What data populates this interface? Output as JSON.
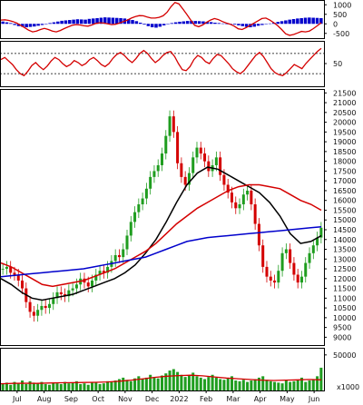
{
  "chart_data": {
    "type": "line",
    "title": "",
    "x_axis": {
      "labels": [
        "Jul",
        "Aug",
        "Sep",
        "Oct",
        "Nov",
        "Dec",
        "2022",
        "Feb",
        "Mar",
        "Apr",
        "May",
        "Jun"
      ]
    },
    "panels": [
      {
        "id": "macd",
        "ylim": [
          -750,
          1250
        ],
        "tick_labels": [
          "1000",
          "500",
          "0",
          "-500"
        ],
        "tick_values": [
          1000,
          500,
          0,
          -500
        ],
        "series": [
          {
            "type": "histogram",
            "color": "#0000cc",
            "values": [
              120,
              80,
              40,
              -60,
              -120,
              -150,
              -180,
              -160,
              -140,
              -100,
              -60,
              -20,
              40,
              80,
              120,
              160,
              180,
              200,
              220,
              240,
              230,
              220,
              260,
              280,
              300,
              320,
              340,
              330,
              320,
              310,
              300,
              280,
              240,
              200,
              140,
              60,
              -40,
              -120,
              -180,
              -200,
              -150,
              -80,
              -20,
              40,
              80,
              110,
              130,
              150,
              160,
              150,
              140,
              130,
              110,
              90,
              60,
              40,
              20,
              0,
              -20,
              -40,
              -80,
              -120,
              -160,
              -180,
              -150,
              -100,
              -60,
              -20,
              20,
              60,
              100,
              140,
              180,
              220,
              250,
              280,
              300,
              320,
              330,
              320,
              310,
              300
            ]
          },
          {
            "type": "line",
            "color": "#d40000",
            "values": [
              200,
              210,
              180,
              120,
              40,
              -80,
              -200,
              -330,
              -420,
              -380,
              -300,
              -240,
              -300,
              -380,
              -420,
              -350,
              -250,
              -160,
              -80,
              -40,
              -60,
              -100,
              -120,
              -60,
              20,
              60,
              40,
              0,
              -40,
              -20,
              40,
              120,
              200,
              300,
              380,
              430,
              420,
              360,
              300,
              300,
              340,
              420,
              600,
              900,
              1120,
              1050,
              780,
              500,
              200,
              -80,
              -150,
              -60,
              80,
              200,
              280,
              220,
              120,
              40,
              -20,
              -120,
              -260,
              -300,
              -200,
              -80,
              40,
              160,
              280,
              300,
              200,
              60,
              -100,
              -300,
              -520,
              -600,
              -560,
              -480,
              -400,
              -420,
              -380,
              -250,
              -100,
              60
            ]
          }
        ]
      },
      {
        "id": "rsi",
        "ylim": [
          5,
          95
        ],
        "tick_labels": [
          "50"
        ],
        "tick_values": [
          50
        ],
        "levels": [
          70,
          30
        ],
        "series": [
          {
            "type": "line",
            "color": "#d40000",
            "values": [
              58,
              62,
              55,
              48,
              38,
              30,
              26,
              35,
              46,
              52,
              44,
              38,
              45,
              55,
              62,
              58,
              50,
              44,
              48,
              56,
              52,
              46,
              50,
              58,
              62,
              56,
              48,
              44,
              50,
              60,
              68,
              72,
              66,
              58,
              52,
              60,
              70,
              76,
              70,
              60,
              52,
              58,
              66,
              72,
              74,
              64,
              50,
              38,
              36,
              44,
              58,
              66,
              62,
              54,
              50,
              60,
              68,
              66,
              58,
              50,
              40,
              34,
              30,
              36,
              46,
              56,
              66,
              72,
              64,
              52,
              40,
              32,
              28,
              26,
              32,
              40,
              48,
              44,
              40,
              50,
              58,
              66,
              74,
              80
            ]
          }
        ]
      },
      {
        "id": "price",
        "ylim": [
          8600,
          21700
        ],
        "tick_labels": [
          "21500",
          "21000",
          "20500",
          "20000",
          "19500",
          "19000",
          "18500",
          "18000",
          "17500",
          "17000",
          "16500",
          "16000",
          "15500",
          "15000",
          "14500",
          "14000",
          "13500",
          "13000",
          "12500",
          "12000",
          "11500",
          "11000",
          "10500",
          "10000",
          "9500",
          "9000"
        ],
        "tick_values": [
          21500,
          21000,
          20500,
          20000,
          19500,
          19000,
          18500,
          18000,
          17500,
          17000,
          16500,
          16000,
          15500,
          15000,
          14500,
          14000,
          13500,
          13000,
          12500,
          12000,
          11500,
          11000,
          10500,
          10000,
          9500,
          9000
        ],
        "candles_close": [
          12500,
          12600,
          12300,
          12200,
          11900,
          11500,
          10800,
          10300,
          10100,
          10400,
          10600,
          10500,
          10700,
          11000,
          11300,
          11200,
          11100,
          11400,
          11500,
          11700,
          12000,
          11800,
          11600,
          11900,
          12200,
          12400,
          12300,
          12600,
          12900,
          13200,
          13100,
          13500,
          14200,
          14900,
          15400,
          15800,
          16100,
          16600,
          17200,
          17500,
          17800,
          18400,
          19300,
          20300,
          19500,
          17900,
          17200,
          16800,
          17400,
          18200,
          18700,
          18400,
          18000,
          17500,
          17800,
          18200,
          17300,
          16800,
          16400,
          15900,
          15600,
          15800,
          16300,
          16500,
          15800,
          14800,
          13700,
          12600,
          12100,
          11900,
          11800,
          12400,
          13300,
          13500,
          12800,
          12200,
          11800,
          12100,
          12800,
          13300,
          13700,
          14100,
          14600
        ],
        "series": [
          {
            "name": "",
            "color": "#000000",
            "values": [
              12000,
              11700,
              11300,
              11000,
              10900,
              11000,
              11100,
              11200,
              11400,
              11600,
              11800,
              12000,
              12300,
              12700,
              13300,
              14000,
              14900,
              15900,
              16800,
              17400,
              17700,
              17600,
              17300,
              17000,
              16700,
              16400,
              15900,
              15200,
              14300,
              13800,
              13900,
              14200
            ]
          },
          {
            "name": "",
            "color": "#d40000",
            "values": [
              12800,
              12600,
              12300,
              12000,
              11700,
              11600,
              11700,
              11800,
              11900,
              12100,
              12300,
              12500,
              12800,
              13100,
              13400,
              13800,
              14300,
              14800,
              15200,
              15600,
              15900,
              16200,
              16500,
              16700,
              16800,
              16800,
              16700,
              16600,
              16300,
              16000,
              15800,
              15500
            ]
          },
          {
            "name": "",
            "color": "#0000cc",
            "values": [
              12100,
              12150,
              12200,
              12250,
              12300,
              12350,
              12400,
              12450,
              12500,
              12600,
              12700,
              12800,
              12900,
              13000,
              13100,
              13300,
              13500,
              13700,
              13900,
              14000,
              14100,
              14150,
              14200,
              14250,
              14300,
              14350,
              14400,
              14450,
              14500,
              14550,
              14600,
              14650
            ]
          }
        ]
      },
      {
        "id": "volume",
        "ylim": [
          0,
          60000
        ],
        "tick_labels": [
          "50000"
        ],
        "tick_values": [
          50000
        ],
        "unit_label": "x1000",
        "bars": [
          9000,
          11000,
          8000,
          12000,
          10000,
          14000,
          9000,
          13000,
          11000,
          10000,
          12000,
          9000,
          8000,
          11000,
          10000,
          9000,
          12000,
          10000,
          11000,
          13000,
          9000,
          10000,
          8000,
          12000,
          11000,
          9000,
          10000,
          13000,
          12000,
          14000,
          16000,
          18000,
          15000,
          13000,
          17000,
          20000,
          16000,
          18000,
          22000,
          19000,
          17000,
          21000,
          24000,
          28000,
          30000,
          26000,
          22000,
          19000,
          21000,
          25000,
          20000,
          18000,
          16000,
          19000,
          22000,
          18000,
          16000,
          15000,
          17000,
          20000,
          14000,
          13000,
          15000,
          12000,
          14000,
          16000,
          18000,
          20000,
          15000,
          13000,
          12000,
          11000,
          10000,
          14000,
          12000,
          13000,
          15000,
          18000,
          12000,
          14000,
          16000,
          20000,
          32000
        ],
        "series": [
          {
            "name": "",
            "color": "#d40000",
            "values": [
              9500,
              10000,
              10200,
              10000,
              10500,
              10800,
              11000,
              11200,
              11500,
              12000,
              13000,
              14500,
              16500,
              18500,
              20000,
              21000,
              21500,
              20500,
              19000,
              17500,
              16500,
              15500,
              14500,
              14000,
              14500,
              15000,
              15500,
              15000
            ]
          }
        ]
      }
    ]
  }
}
